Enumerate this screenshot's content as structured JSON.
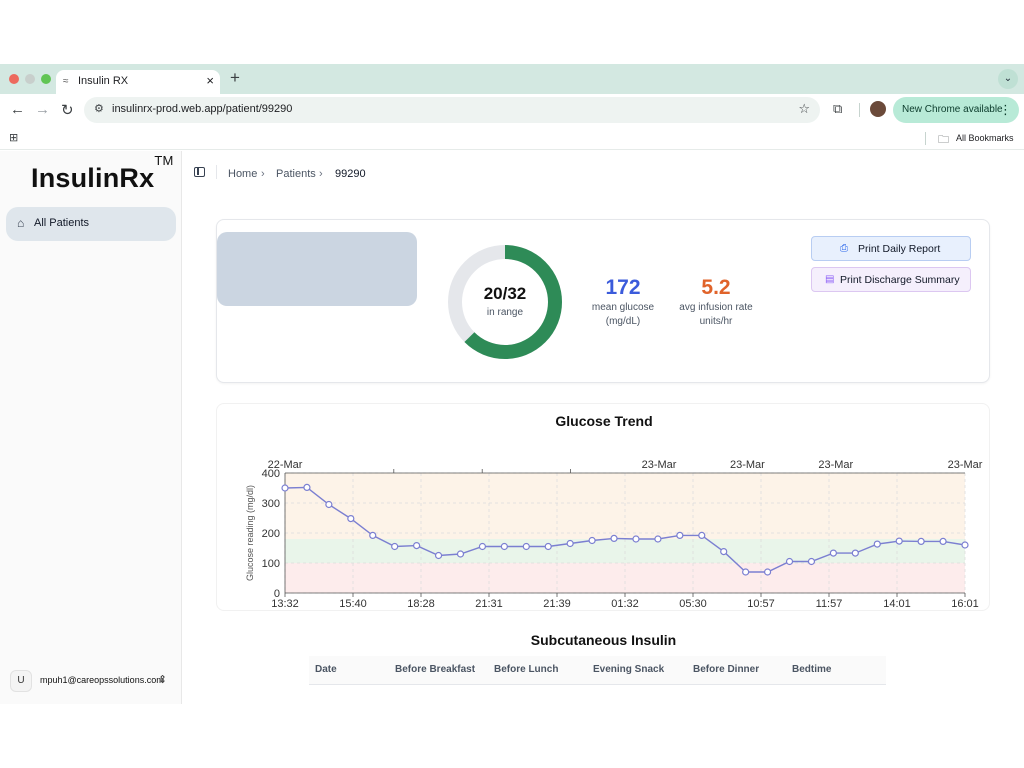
{
  "browser": {
    "tab_title": "Insulin RX",
    "tab_favicon": "≈",
    "url": "insulinrx-prod.web.app/patient/99290",
    "new_chrome_label": "New Chrome available",
    "all_bookmarks_label": "All Bookmarks"
  },
  "sidebar": {
    "logo_text": "InsulinRx",
    "logo_mark": "TM",
    "nav_items": [
      {
        "label": "All Patients",
        "icon": "home-icon"
      }
    ],
    "user": {
      "initial": "U",
      "email": "mpuh1@careopssolutions.com"
    }
  },
  "breadcrumb": {
    "items": [
      "Home",
      "Patients",
      "99290"
    ]
  },
  "summary": {
    "in_range_count": 20,
    "total_count": 32,
    "in_range_text": "20/32",
    "in_range_label": "in range",
    "mean_glucose_value": "172",
    "mean_glucose_label_1": "mean glucose",
    "mean_glucose_label_2": "(mg/dL)",
    "infusion_value": "5.2",
    "infusion_label_1": "avg infusion rate",
    "infusion_label_2": "units/hr",
    "colors": {
      "donut_filled": "#2e8b57",
      "donut_empty": "#e5e7eb",
      "mean_glucose": "#3b5bdb",
      "infusion": "#e0632a"
    }
  },
  "actions": {
    "print_daily_label": "Print Daily Report",
    "print_daily_icon": "printer-icon",
    "print_discharge_label": "Print Discharge Summary",
    "print_discharge_icon": "document-icon"
  },
  "chart_data": {
    "type": "line",
    "title": "Glucose Trend",
    "ylabel": "Glucose reading (mg/dl)",
    "xlabel": "",
    "ylim": [
      0,
      400
    ],
    "yticks": [
      0,
      100,
      200,
      300,
      400
    ],
    "x_tick_labels": [
      "13:32",
      "15:40",
      "18:28",
      "21:31",
      "21:39",
      "01:32",
      "05:30",
      "10:57",
      "11:57",
      "14:01",
      "16:01"
    ],
    "top_date_labels": [
      "22-Mar",
      "23-Mar",
      "23-Mar",
      "23-Mar",
      "23-Mar"
    ],
    "bands": [
      {
        "from": 0,
        "to": 100,
        "color": "#fdecec"
      },
      {
        "from": 100,
        "to": 180,
        "color": "#e9f5ea"
      },
      {
        "from": 180,
        "to": 400,
        "color": "#fdf3e8"
      }
    ],
    "series": [
      {
        "color": "#7b7fd1",
        "values": [
          350,
          352,
          295,
          248,
          192,
          155,
          158,
          125,
          130,
          155,
          155,
          155,
          155,
          165,
          175,
          182,
          180,
          180,
          192,
          192,
          138,
          70,
          70,
          105,
          105,
          133,
          133,
          163,
          173,
          172,
          172,
          160
        ]
      }
    ],
    "grid": true
  },
  "insulin": {
    "title": "Subcutaneous Insulin",
    "columns": [
      "Date",
      "Before Breakfast",
      "Before Lunch",
      "Evening Snack",
      "Before Dinner",
      "Bedtime"
    ]
  }
}
